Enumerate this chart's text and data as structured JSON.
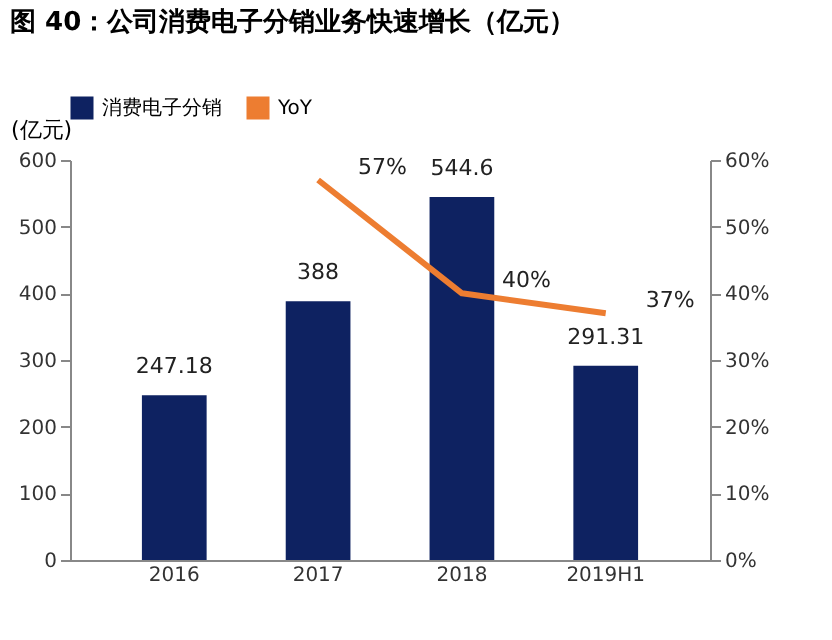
{
  "chart_data": {
    "type": "bar",
    "title": "图 40：公司消费电子分销业务快速增长（亿元）",
    "categories": [
      "2016",
      "2017",
      "2018",
      "2019H1"
    ],
    "ylabel": "(亿元)",
    "ylim": [
      0,
      600
    ],
    "yticks": [
      0,
      100,
      200,
      300,
      400,
      500,
      600
    ],
    "y2lim": [
      0,
      60
    ],
    "y2ticks": [
      {
        "value": 0,
        "label": "0%"
      },
      {
        "value": 10,
        "label": "10%"
      },
      {
        "value": 20,
        "label": "20%"
      },
      {
        "value": 30,
        "label": "30%"
      },
      {
        "value": 40,
        "label": "40%"
      },
      {
        "value": 50,
        "label": "50%"
      },
      {
        "value": 60,
        "label": "60%"
      }
    ],
    "series": [
      {
        "name": "消费电子分销",
        "color": "#0e2261",
        "values": [
          247.18,
          388,
          544.6,
          291.31
        ],
        "value_labels": [
          "247.18",
          "388",
          "544.6",
          "291.31"
        ]
      },
      {
        "name": "YoY",
        "type": "line",
        "axis": "y2",
        "color": "#ed7d31",
        "values": [
          null,
          57,
          40,
          37
        ],
        "value_labels": [
          null,
          "57%",
          "40%",
          "37%"
        ]
      }
    ],
    "legend": "top",
    "grid": false
  }
}
